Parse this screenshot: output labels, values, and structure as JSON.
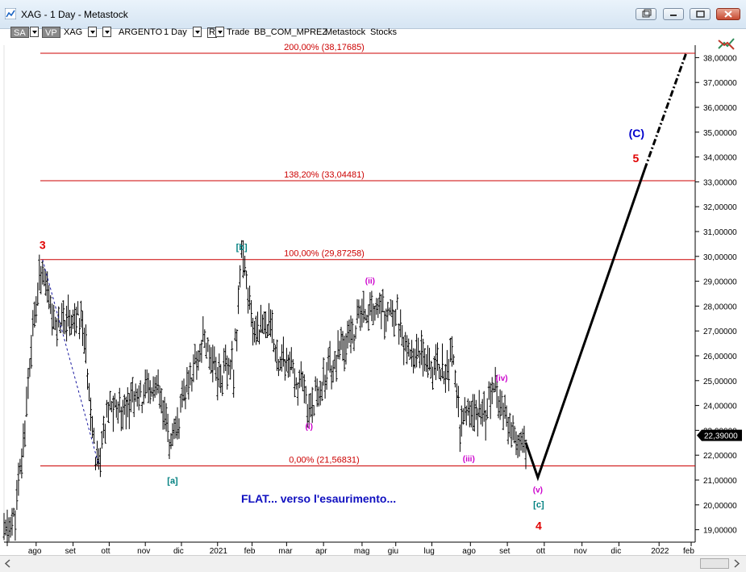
{
  "window": {
    "title": "XAG - 1 Day - Metastock"
  },
  "toolbar": {
    "sa_label": "SA",
    "vp_label": "VP",
    "symbol": "XAG",
    "name": "ARGENTO",
    "period": "1 Day",
    "r_label": "R",
    "trade_label": "Trade",
    "account": "BB_COM_MPREZ",
    "source": "Metastock",
    "type": "Stocks"
  },
  "price_tag": "22,39000",
  "colors": {
    "fib_line": "#cc0000",
    "price_bars": "#000000",
    "wave_red": "#e00000",
    "wave_blue": "#0000cc",
    "wave_magenta": "#cc00cc",
    "wave_teal": "#008080"
  },
  "chart_data": {
    "type": "ohlc",
    "title": "XAG - 1 Day",
    "ylim": [
      18.5,
      38.5
    ],
    "y_ticks": [
      19,
      20,
      21,
      22,
      23,
      24,
      25,
      26,
      27,
      28,
      29,
      30,
      31,
      32,
      33,
      34,
      35,
      36,
      37,
      38
    ],
    "y_tick_labels": [
      "19,00000",
      "20,00000",
      "21,00000",
      "22,00000",
      "23,00000",
      "24,00000",
      "25,00000",
      "26,00000",
      "27,00000",
      "28,00000",
      "29,00000",
      "30,00000",
      "31,00000",
      "32,00000",
      "33,00000",
      "34,00000",
      "35,00000",
      "36,00000",
      "37,00000",
      "38,00000"
    ],
    "x_labels": [
      {
        "i": 40,
        "label": "ago"
      },
      {
        "i": 86,
        "label": "set"
      },
      {
        "i": 131,
        "label": "ott"
      },
      {
        "i": 176,
        "label": "nov"
      },
      {
        "i": 221,
        "label": "dic"
      },
      {
        "i": 266,
        "label": "2021"
      },
      {
        "i": 309,
        "label": "feb"
      },
      {
        "i": 352,
        "label": "mar"
      },
      {
        "i": 398,
        "label": "apr"
      },
      {
        "i": 446,
        "label": "mag"
      },
      {
        "i": 488,
        "label": "giu"
      },
      {
        "i": 533,
        "label": "lug"
      },
      {
        "i": 581,
        "label": "ago"
      },
      {
        "i": 627,
        "label": "set"
      },
      {
        "i": 673,
        "label": "ott"
      },
      {
        "i": 720,
        "label": "nov"
      },
      {
        "i": 766,
        "label": "dic"
      },
      {
        "i": 816,
        "label": "2022"
      },
      {
        "i": 856,
        "label": "feb"
      }
    ],
    "price_path": [
      [
        0,
        18.8
      ],
      [
        14,
        19.5
      ],
      [
        24,
        22.5
      ],
      [
        34,
        26.5
      ],
      [
        48,
        29.87
      ],
      [
        60,
        27.2
      ],
      [
        78,
        27.5
      ],
      [
        98,
        27.3
      ],
      [
        114,
        22.2
      ],
      [
        118,
        21.6
      ],
      [
        130,
        23.8
      ],
      [
        158,
        24.2
      ],
      [
        190,
        24.6
      ],
      [
        210,
        22.2
      ],
      [
        224,
        24.3
      ],
      [
        248,
        26.8
      ],
      [
        268,
        25.2
      ],
      [
        286,
        25.5
      ],
      [
        296,
        30.1
      ],
      [
        310,
        27.0
      ],
      [
        324,
        27.5
      ],
      [
        340,
        26.2
      ],
      [
        364,
        25.0
      ],
      [
        380,
        23.9
      ],
      [
        400,
        25.2
      ],
      [
        426,
        26.5
      ],
      [
        444,
        27.5
      ],
      [
        456,
        28.0
      ],
      [
        476,
        27.6
      ],
      [
        490,
        27.9
      ],
      [
        500,
        26.0
      ],
      [
        522,
        26.3
      ],
      [
        538,
        25.5
      ],
      [
        552,
        25.6
      ],
      [
        560,
        26.0
      ],
      [
        568,
        23.2
      ],
      [
        582,
        23.5
      ],
      [
        600,
        23.8
      ],
      [
        612,
        24.8
      ],
      [
        626,
        23.8
      ],
      [
        640,
        22.2
      ],
      [
        650,
        22.5
      ]
    ],
    "fib_levels": [
      {
        "value": 38.17685,
        "label": "200,00% (38,17685)"
      },
      {
        "value": 33.04481,
        "label": "138,20% (33,04481)"
      },
      {
        "value": 29.87258,
        "label": "100,00% (29,87258)"
      },
      {
        "value": 21.56831,
        "label": "0,00% (21,56831)"
      }
    ],
    "projection": {
      "solid": [
        [
          650,
          22.5
        ],
        [
          665,
          21.1
        ],
        [
          798,
          33.5
        ]
      ],
      "dashed": [
        [
          798,
          33.5
        ],
        [
          850,
          38.2
        ]
      ]
    },
    "dashed_connector": [
      [
        48,
        29.87
      ],
      [
        118,
        21.6
      ]
    ],
    "wave_labels": [
      {
        "text": "3",
        "i": 48,
        "v": 30.3,
        "color": "wave_red",
        "size": 14
      },
      {
        "text": "[b]",
        "i": 296,
        "v": 30.25,
        "color": "wave_teal",
        "size": 11
      },
      {
        "text": "(ii)",
        "i": 456,
        "v": 28.9,
        "color": "wave_magenta",
        "size": 10
      },
      {
        "text": "(i)",
        "i": 380,
        "v": 23.05,
        "color": "wave_magenta",
        "size": 10
      },
      {
        "text": "[a]",
        "i": 210,
        "v": 20.85,
        "color": "wave_teal",
        "size": 11
      },
      {
        "text": "(iv)",
        "i": 620,
        "v": 25.0,
        "color": "wave_magenta",
        "size": 10
      },
      {
        "text": "(iii)",
        "i": 579,
        "v": 21.75,
        "color": "wave_magenta",
        "size": 10
      },
      {
        "text": "(v)",
        "i": 665,
        "v": 20.5,
        "color": "wave_magenta",
        "size": 10
      },
      {
        "text": "[c]",
        "i": 666,
        "v": 19.9,
        "color": "wave_teal",
        "size": 11
      },
      {
        "text": "4",
        "i": 666,
        "v": 19.0,
        "color": "wave_red",
        "size": 14
      },
      {
        "text": "(C)",
        "i": 788,
        "v": 34.8,
        "color": "wave_blue",
        "size": 14
      },
      {
        "text": "5",
        "i": 787,
        "v": 33.8,
        "color": "wave_red",
        "size": 14
      }
    ],
    "annotation": "FLAT... verso l'esaurimento..."
  }
}
